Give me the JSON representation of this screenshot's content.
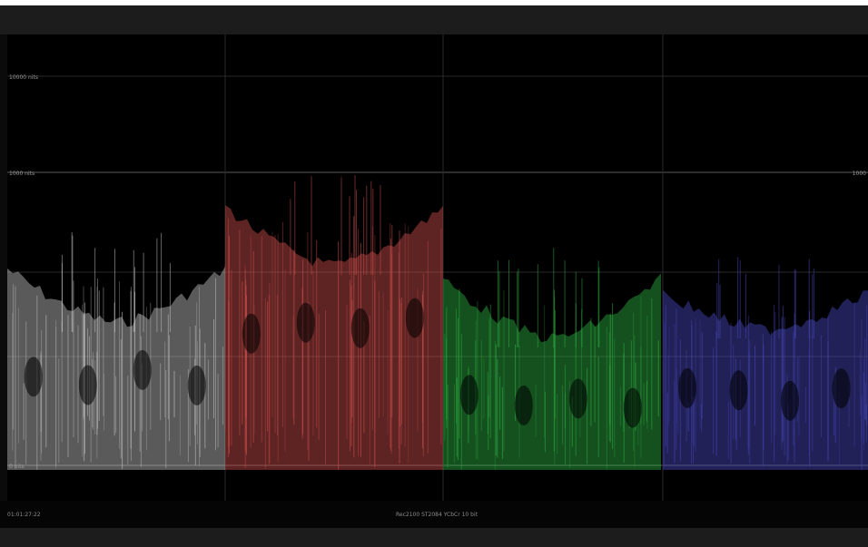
{
  "window": {
    "title": ""
  },
  "scope": {
    "type": "RGB parade waveform",
    "scale_labels": {
      "top": "10000 nits",
      "reference_left": "1000 nits",
      "reference_right": "1000",
      "bottom": "0 nits"
    },
    "channels": [
      {
        "name": "luma",
        "color": "#c8c8c8"
      },
      {
        "name": "red",
        "color": "#d0504e"
      },
      {
        "name": "green",
        "color": "#2fb344"
      },
      {
        "name": "blue",
        "color": "#4a49c0"
      }
    ]
  },
  "status": {
    "timecode": "01:01:27:22",
    "format": "Rec2100 ST2084 YCbCr 10 bit"
  }
}
